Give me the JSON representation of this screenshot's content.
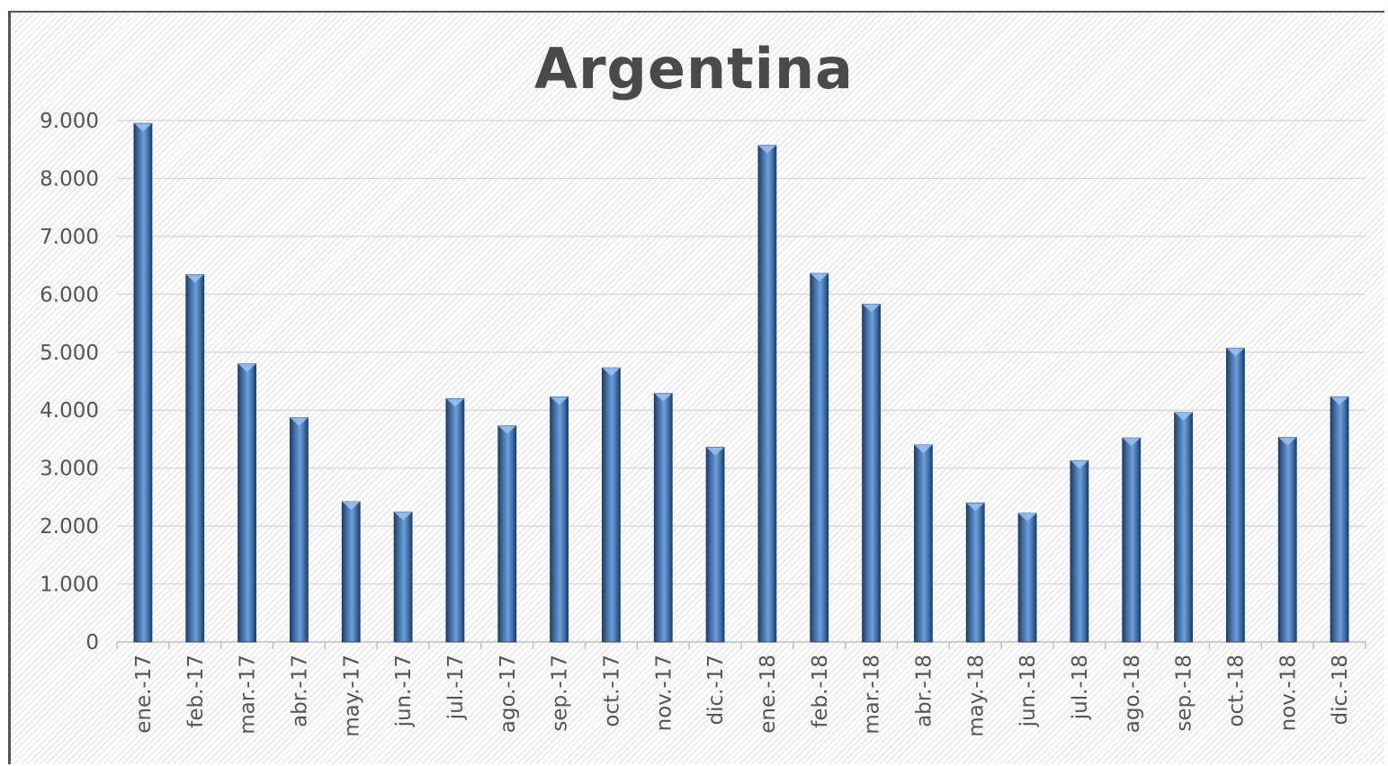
{
  "chart_data": {
    "type": "bar",
    "title": "Argentina",
    "categories": [
      "ene.-17",
      "feb.-17",
      "mar.-17",
      "abr.-17",
      "may.-17",
      "jun.-17",
      "jul.-17",
      "ago.-17",
      "sep.-17",
      "oct.-17",
      "nov.-17",
      "dic.-17",
      "ene.-18",
      "feb.-18",
      "mar.-18",
      "abr.-18",
      "may.-18",
      "jun.-18",
      "jul.-18",
      "ago.-18",
      "sep.-18",
      "oct.-18",
      "nov.-18",
      "dic.-18"
    ],
    "values": [
      8950,
      6340,
      4800,
      3870,
      2420,
      2240,
      4200,
      3730,
      4230,
      4730,
      4290,
      3360,
      8570,
      6360,
      5830,
      3400,
      2400,
      2220,
      3130,
      3520,
      3960,
      5070,
      3530,
      4230
    ],
    "y_ticks": [
      "0",
      "1.000",
      "2.000",
      "3.000",
      "4.000",
      "5.000",
      "6.000",
      "7.000",
      "8.000",
      "9.000"
    ],
    "ylim": [
      0,
      9000
    ],
    "xlabel": "",
    "ylabel": "",
    "grid": true,
    "legend": "none",
    "bar_color": "#4f81bd"
  }
}
